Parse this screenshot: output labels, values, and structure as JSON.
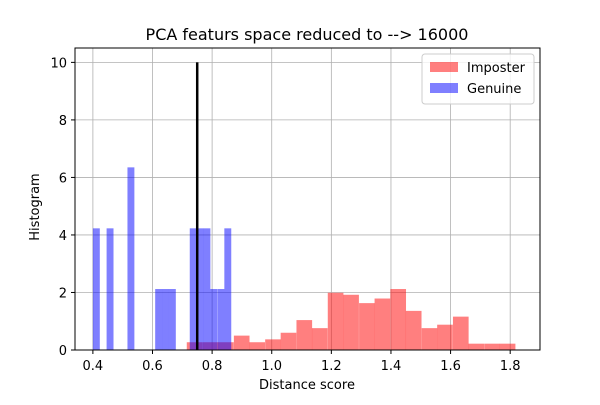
{
  "chart_data": {
    "type": "bar",
    "title": "PCA featurs space reduced to --> 16000",
    "xlabel": "Distance score",
    "ylabel": "Histogram",
    "xlim": [
      0.34,
      1.9
    ],
    "ylim": [
      0,
      10.5
    ],
    "xticks": [
      0.4,
      0.6,
      0.8,
      1.0,
      1.2,
      1.4,
      1.6,
      1.8
    ],
    "xtick_labels": [
      "0.4",
      "0.6",
      "0.8",
      "1.0",
      "1.2",
      "1.4",
      "1.6",
      "1.8"
    ],
    "yticks": [
      0,
      2,
      4,
      6,
      8,
      10
    ],
    "ytick_labels": [
      "0",
      "2",
      "4",
      "6",
      "8",
      "10"
    ],
    "grid": true,
    "legend_position": "top-right",
    "threshold_line": {
      "x": 0.75,
      "y_top": 10,
      "color": "#000000"
    },
    "series": [
      {
        "name": "Imposter",
        "color": "#ff0000",
        "opacity": 0.5,
        "bin_width": 0.0525,
        "bins": [
          {
            "x0": 0.715,
            "value": 0.27
          },
          {
            "x0": 0.768,
            "value": 0.27
          },
          {
            "x0": 0.82,
            "value": 0.27
          },
          {
            "x0": 0.873,
            "value": 0.5
          },
          {
            "x0": 0.925,
            "value": 0.27
          },
          {
            "x0": 0.978,
            "value": 0.37
          },
          {
            "x0": 1.03,
            "value": 0.6
          },
          {
            "x0": 1.083,
            "value": 1.04
          },
          {
            "x0": 1.135,
            "value": 0.76
          },
          {
            "x0": 1.188,
            "value": 1.99
          },
          {
            "x0": 1.24,
            "value": 1.92
          },
          {
            "x0": 1.293,
            "value": 1.63
          },
          {
            "x0": 1.345,
            "value": 1.79
          },
          {
            "x0": 1.398,
            "value": 2.12
          },
          {
            "x0": 1.45,
            "value": 1.36
          },
          {
            "x0": 1.503,
            "value": 0.76
          },
          {
            "x0": 1.555,
            "value": 0.88
          },
          {
            "x0": 1.608,
            "value": 1.16
          },
          {
            "x0": 1.66,
            "value": 0.22
          },
          {
            "x0": 1.713,
            "value": 0.22
          },
          {
            "x0": 1.765,
            "value": 0.22
          }
        ]
      },
      {
        "name": "Genuine",
        "color": "#0000ff",
        "opacity": 0.5,
        "bin_width": 0.0232,
        "bins": [
          {
            "x0": 0.4,
            "value": 4.23
          },
          {
            "x0": 0.446,
            "value": 4.23
          },
          {
            "x0": 0.516,
            "value": 6.35
          },
          {
            "x0": 0.609,
            "value": 2.12
          },
          {
            "x0": 0.632,
            "value": 2.12
          },
          {
            "x0": 0.655,
            "value": 2.12
          },
          {
            "x0": 0.725,
            "value": 4.23
          },
          {
            "x0": 0.748,
            "value": 4.23
          },
          {
            "x0": 0.771,
            "value": 4.23
          },
          {
            "x0": 0.794,
            "value": 2.12
          },
          {
            "x0": 0.818,
            "value": 2.12
          },
          {
            "x0": 0.841,
            "value": 4.23
          }
        ]
      }
    ]
  }
}
